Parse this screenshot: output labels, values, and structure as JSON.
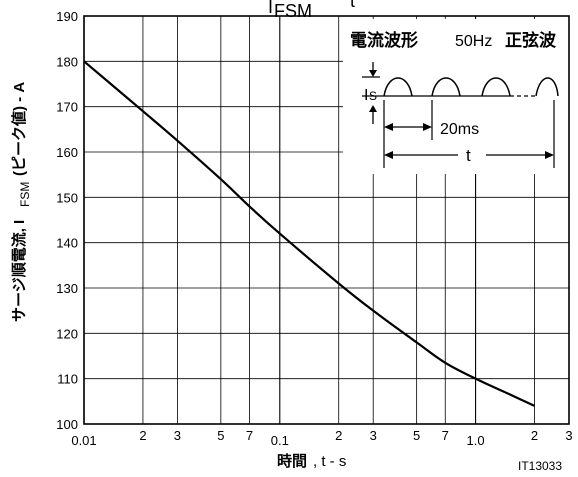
{
  "chart_data": {
    "type": "line",
    "title_partial": "I",
    "title_partial_sub": "FSM",
    "title_partial_right": "t",
    "ylabel_pre": "サージ順電流, I",
    "ylabel_sub": "FSM",
    "ylabel_post": "(ピーク値) - A",
    "xlabel_bold": "時間",
    "xlabel_rest": ", t - s",
    "figure_id": "IT13033",
    "x_scale": "log",
    "xlim": [
      0.01,
      3
    ],
    "ylim": [
      100,
      190
    ],
    "y_ticks": [
      "100",
      "110",
      "120",
      "130",
      "140",
      "150",
      "160",
      "170",
      "180",
      "190"
    ],
    "x_major_labels": [
      "0.01",
      "0.1",
      "1.0"
    ],
    "x_minor_labels": [
      "2",
      "3",
      "5",
      "7",
      "2",
      "3",
      "5",
      "7",
      "2",
      "3"
    ],
    "grid": true,
    "series": [
      {
        "x": [
          0.01,
          0.02,
          0.03,
          0.05,
          0.07,
          0.1,
          0.2,
          0.3,
          0.5,
          0.7,
          1.0,
          1.5,
          2.0
        ],
        "y": [
          180,
          169,
          162.5,
          154,
          148,
          142,
          131,
          125,
          118,
          113.5,
          110,
          106.5,
          104
        ]
      }
    ],
    "inset": {
      "title": "電流波形",
      "title_right_pre": "50Hz",
      "title_right_bold": "正弦波",
      "is_label_main": "I",
      "is_label_sub": "S",
      "period_label": "20ms",
      "t_label": "t"
    }
  }
}
